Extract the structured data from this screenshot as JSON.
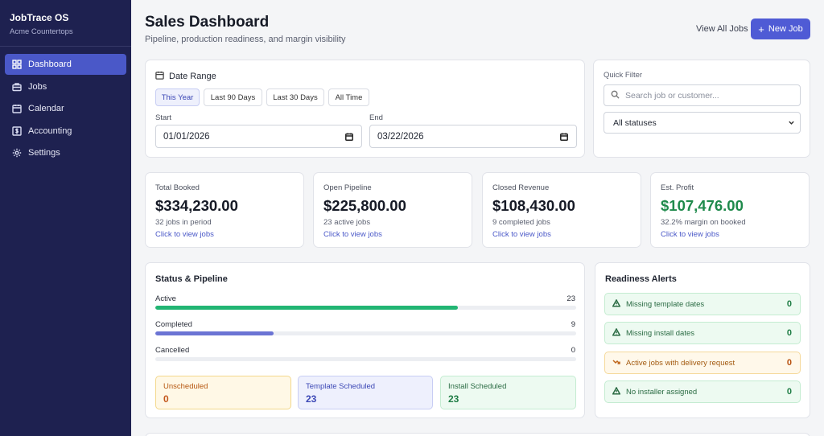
{
  "brand": {
    "name": "JobTrace OS",
    "company": "Acme Countertops"
  },
  "sidebar": {
    "items": [
      {
        "label": "Dashboard",
        "icon": "dashboard-icon",
        "active": true
      },
      {
        "label": "Jobs",
        "icon": "briefcase-icon",
        "active": false
      },
      {
        "label": "Calendar",
        "icon": "calendar-icon",
        "active": false
      },
      {
        "label": "Accounting",
        "icon": "dollar-icon",
        "active": false
      },
      {
        "label": "Settings",
        "icon": "gear-icon",
        "active": false
      }
    ]
  },
  "header": {
    "title": "Sales Dashboard",
    "subtitle": "Pipeline, production readiness, and margin visibility",
    "view_all": "View All Jobs",
    "new_job": "New Job"
  },
  "date_range": {
    "title": "Date Range",
    "presets": [
      "This Year",
      "Last 90 Days",
      "Last 30 Days",
      "All Time"
    ],
    "active_preset": "This Year",
    "start_label": "Start",
    "start_value": "01/01/2026",
    "end_label": "End",
    "end_value": "03/22/2026"
  },
  "quick_filter": {
    "title": "Quick Filter",
    "search_placeholder": "Search job or customer...",
    "status_value": "All statuses"
  },
  "stats": [
    {
      "label": "Total Booked",
      "value": "$334,230.00",
      "sub": "32 jobs in period",
      "link": "Click to view jobs"
    },
    {
      "label": "Open Pipeline",
      "value": "$225,800.00",
      "sub": "23 active jobs",
      "link": "Click to view jobs"
    },
    {
      "label": "Closed Revenue",
      "value": "$108,430.00",
      "sub": "9 completed jobs",
      "link": "Click to view jobs"
    },
    {
      "label": "Est. Profit",
      "value": "$107,476.00",
      "sub": "32.2% margin on booked",
      "link": "Click to view jobs"
    }
  ],
  "pipeline": {
    "title": "Status & Pipeline",
    "bars": [
      {
        "label": "Active",
        "count": "23",
        "fraction": 0.7188,
        "color": "#22b573"
      },
      {
        "label": "Completed",
        "count": "9",
        "fraction": 0.2813,
        "color": "#6b74d4"
      },
      {
        "label": "Cancelled",
        "count": "0",
        "fraction": 0,
        "color": "#9aa0ad"
      }
    ],
    "boxes": [
      {
        "label": "Unscheduled",
        "count": "0"
      },
      {
        "label": "Template Scheduled",
        "count": "23"
      },
      {
        "label": "Install Scheduled",
        "count": "23"
      }
    ]
  },
  "readiness": {
    "title": "Readiness Alerts",
    "alerts": [
      {
        "label": "Missing template dates",
        "count": "0",
        "kind": "ok",
        "icon": "warning-icon"
      },
      {
        "label": "Missing install dates",
        "count": "0",
        "kind": "ok",
        "icon": "warning-icon"
      },
      {
        "label": "Active jobs with delivery request",
        "count": "0",
        "kind": "warn",
        "icon": "trend-down-icon"
      },
      {
        "label": "No installer assigned",
        "count": "0",
        "kind": "ok",
        "icon": "warning-icon"
      }
    ]
  }
}
